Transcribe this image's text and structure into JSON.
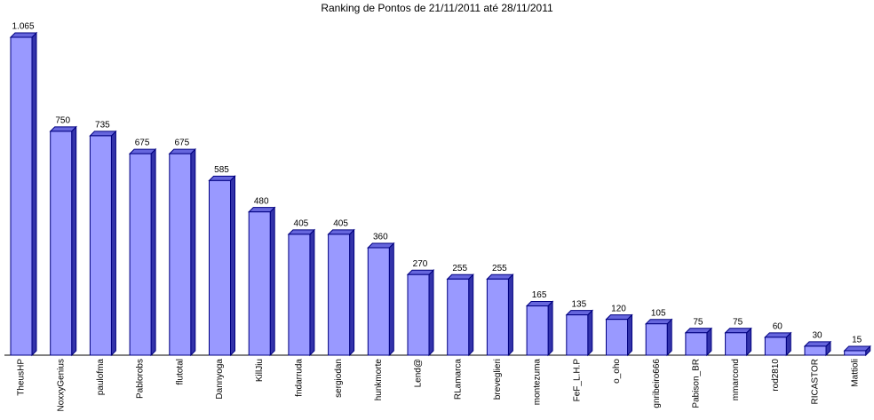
{
  "chart_data": {
    "type": "bar3d",
    "title": "Ranking de Pontos de 21/11/2011 até 28/11/2011",
    "categories": [
      "TheusHP",
      "NoxxyGenius",
      "paulofma",
      "Pablorobs",
      "flutotal",
      "Dannyoga",
      "KillJiu",
      "fndarruda",
      "sergiodan",
      "hunkmorte",
      "Lend@",
      "RLamarca",
      "breveglieri",
      "montezuma",
      "FeF_L.H.P",
      "o_oho",
      "gnribeiro666",
      "Pabison_BR",
      "mmarcond",
      "rod2810",
      "RICASTOR",
      "Mattioli"
    ],
    "values": [
      1065,
      750,
      735,
      675,
      675,
      585,
      480,
      405,
      405,
      360,
      270,
      255,
      255,
      165,
      135,
      120,
      105,
      75,
      75,
      60,
      30,
      15
    ],
    "value_labels": [
      "1.065",
      "750",
      "735",
      "675",
      "675",
      "585",
      "480",
      "405",
      "405",
      "360",
      "270",
      "255",
      "255",
      "165",
      "135",
      "120",
      "105",
      "75",
      "75",
      "60",
      "30",
      "15"
    ],
    "color": "#9999ff"
  }
}
